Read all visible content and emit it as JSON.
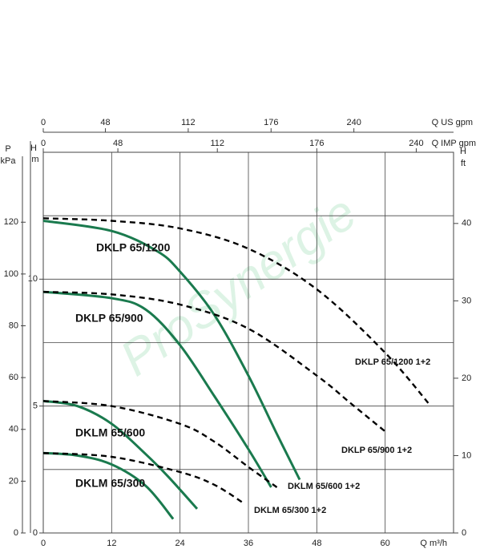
{
  "chart_data": {
    "type": "line",
    "watermark": "ProSynergie",
    "xlabel": "Q m³/h",
    "xlim": [
      0,
      72
    ],
    "xticks": [
      0,
      12,
      24,
      36,
      48,
      60
    ],
    "ylabel": "H",
    "yunit": "m",
    "ylim": [
      0,
      15
    ],
    "yticks": [
      0,
      5,
      10
    ],
    "y_grid": [
      2.5,
      5,
      7.5,
      10,
      12.5
    ],
    "p_label": "P",
    "p_unit": "kPa",
    "plim": [
      0,
      147
    ],
    "pticks": [
      0,
      20,
      40,
      60,
      80,
      100,
      120
    ],
    "ft_label": "H",
    "ft_unit": "ft",
    "ftlim": [
      0,
      49.2
    ],
    "ftticks": [
      0,
      10,
      20,
      30,
      40
    ],
    "us_label": "Q US gpm",
    "uslim": [
      0,
      317
    ],
    "usticks": [
      0,
      48,
      112,
      176,
      240
    ],
    "imp_label": "Q IMP gpm",
    "implim": [
      0,
      264
    ],
    "impticks": [
      0,
      48,
      112,
      176,
      240
    ],
    "series": [
      {
        "name": "DKLP 65/1200",
        "color": "#1a7a4e",
        "dashed": false,
        "x": [
          0,
          12,
          20,
          24,
          30,
          36,
          41,
          45
        ],
        "values": [
          12.3,
          11.9,
          11.1,
          10.3,
          8.6,
          6.2,
          3.9,
          2.1
        ]
      },
      {
        "name": "DKLP 65/1200 1+2",
        "color": "#000000",
        "dashed": true,
        "x": [
          0,
          12,
          24,
          36,
          48,
          60,
          68
        ],
        "values": [
          12.4,
          12.3,
          12.0,
          11.2,
          9.6,
          7.1,
          5.0
        ]
      },
      {
        "name": "DKLP 65/900",
        "color": "#1a7a4e",
        "dashed": false,
        "x": [
          0,
          12,
          18,
          24,
          30,
          36,
          40
        ],
        "values": [
          9.5,
          9.25,
          8.8,
          7.4,
          5.4,
          3.3,
          1.8
        ]
      },
      {
        "name": "DKLP 65/900 1+2",
        "color": "#000000",
        "dashed": true,
        "x": [
          0,
          12,
          24,
          36,
          48,
          54,
          60
        ],
        "values": [
          9.5,
          9.4,
          9.0,
          8.05,
          6.2,
          5.1,
          4.0
        ]
      },
      {
        "name": "DKLM 65/600",
        "color": "#1a7a4e",
        "dashed": false,
        "x": [
          0,
          6,
          12,
          18,
          22,
          27
        ],
        "values": [
          5.2,
          5.0,
          4.3,
          3.1,
          2.2,
          0.95
        ]
      },
      {
        "name": "DKLM 65/600 1+2",
        "color": "#000000",
        "dashed": true,
        "x": [
          0,
          12,
          24,
          30,
          36,
          41
        ],
        "values": [
          5.2,
          5.0,
          4.3,
          3.6,
          2.6,
          1.8
        ]
      },
      {
        "name": "DKLM 65/300",
        "color": "#1a7a4e",
        "dashed": false,
        "x": [
          0,
          6,
          12,
          18,
          22.8
        ],
        "values": [
          3.15,
          3.05,
          2.7,
          1.85,
          0.55
        ]
      },
      {
        "name": "DKLM 65/300 1+2",
        "color": "#000000",
        "dashed": true,
        "x": [
          0,
          12,
          24,
          30,
          35
        ],
        "values": [
          3.15,
          3.0,
          2.4,
          1.9,
          1.2
        ]
      }
    ]
  }
}
